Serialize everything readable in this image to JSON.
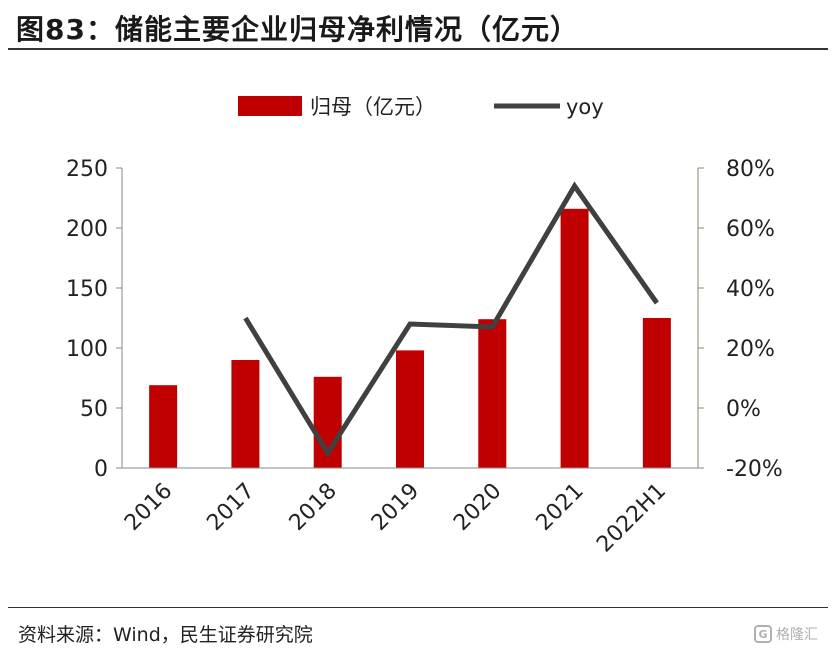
{
  "title": "图83：储能主要企业归母净利情况（亿元）",
  "source": "资料来源：Wind，民生证券研究院",
  "watermark": {
    "icon_text": "G",
    "text": "格隆汇"
  },
  "colors": {
    "bar": "#c00000",
    "line": "#404040",
    "axis": "#888888",
    "right_axis": "#8a8a6a"
  },
  "chart_data": {
    "type": "bar",
    "categories": [
      "2016",
      "2017",
      "2018",
      "2019",
      "2020",
      "2021",
      "2022H1"
    ],
    "series": [
      {
        "name": "归母（亿元）",
        "type": "bar",
        "axis": "left",
        "values": [
          69,
          90,
          76,
          98,
          124,
          216,
          125
        ]
      },
      {
        "name": "yoy",
        "type": "line",
        "axis": "right",
        "values": [
          null,
          0.3,
          -0.15,
          0.28,
          0.27,
          0.74,
          0.35
        ]
      }
    ],
    "ylim": [
      0,
      250
    ],
    "yticks": [
      "0",
      "50",
      "100",
      "150",
      "200",
      "250"
    ],
    "y2lim": [
      -0.2,
      0.8
    ],
    "y2ticks": [
      "-20%",
      "0%",
      "20%",
      "40%",
      "60%",
      "80%"
    ],
    "legend_position": "top-center",
    "grid": false
  }
}
